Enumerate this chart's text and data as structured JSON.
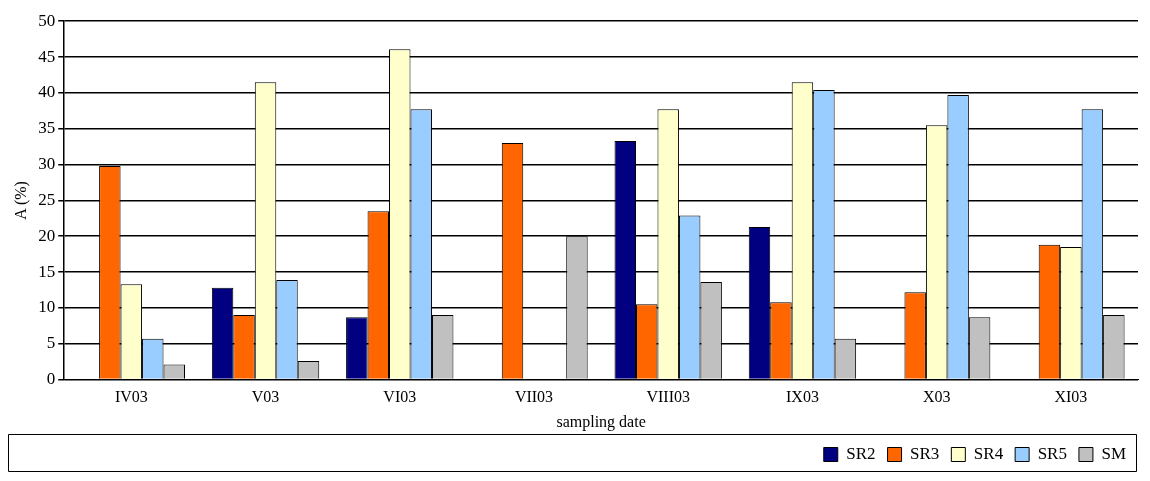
{
  "chart_data": {
    "type": "bar",
    "xlabel": "sampling date",
    "ylabel": "A (%)",
    "categories": [
      "IV03",
      "V03",
      "VI03",
      "VII03",
      "VIII03",
      "IX03",
      "X03",
      "XI03"
    ],
    "series": [
      {
        "name": "SR2",
        "color": "#000080",
        "values": [
          null,
          12.8,
          8.7,
          null,
          33.3,
          21.3,
          null,
          null
        ]
      },
      {
        "name": "SR3",
        "color": "#ff6600",
        "values": [
          29.8,
          9.0,
          23.5,
          33.0,
          10.5,
          10.8,
          12.2,
          18.8
        ]
      },
      {
        "name": "SR4",
        "color": "#ffffcc",
        "values": [
          13.3,
          41.5,
          46.1,
          null,
          37.7,
          41.5,
          35.5,
          18.5
        ]
      },
      {
        "name": "SR5",
        "color": "#99ccff",
        "values": [
          5.7,
          13.9,
          37.7,
          null,
          22.9,
          40.4,
          39.7,
          37.7
        ]
      },
      {
        "name": "SM",
        "color": "#c0c0c0",
        "values": [
          2.1,
          2.6,
          9.0,
          20.0,
          13.6,
          5.7,
          8.7,
          9.0
        ]
      }
    ],
    "ylim": [
      0,
      50
    ],
    "yticks": [
      0,
      5,
      10,
      15,
      20,
      25,
      30,
      35,
      40,
      45,
      50
    ],
    "grid": "y",
    "legend": "bottom right"
  }
}
